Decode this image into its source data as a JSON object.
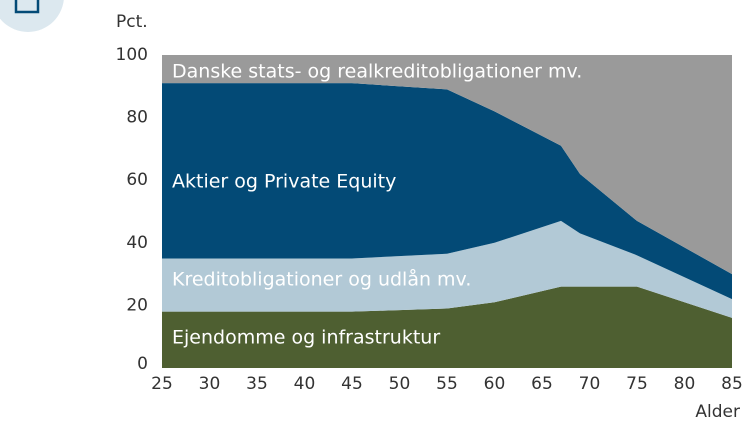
{
  "chart_data": {
    "type": "stacked_area",
    "y_label": "Pct.",
    "x_label": "Alder",
    "x": [
      25,
      45,
      55,
      60,
      67,
      69,
      75,
      85
    ],
    "series": [
      {
        "name": "Ejendomme og infrastruktur",
        "color": "#4e5f31",
        "values": [
          18,
          18,
          19,
          21,
          26,
          26,
          26,
          16
        ]
      },
      {
        "name": "Kreditobligationer og udlån mv.",
        "color": "#b2c9d6",
        "values": [
          17,
          17,
          17.5,
          19,
          21,
          17,
          10,
          6
        ]
      },
      {
        "name": "Aktier og Private Equity",
        "color": "#034a76",
        "values": [
          56,
          56,
          52.5,
          42,
          24,
          19,
          11,
          8
        ]
      },
      {
        "name": "Danske stats- og realkreditobligationer mv.",
        "color": "#9a9a9a",
        "values": [
          9,
          9,
          11,
          18,
          29,
          38,
          53,
          70
        ]
      }
    ],
    "xlim": [
      25,
      85
    ],
    "xticks": [
      25,
      30,
      35,
      40,
      45,
      50,
      55,
      60,
      65,
      70,
      75,
      80,
      85
    ],
    "ylim": [
      0,
      100
    ],
    "yticks": [
      0,
      20,
      40,
      60,
      80,
      100
    ]
  }
}
